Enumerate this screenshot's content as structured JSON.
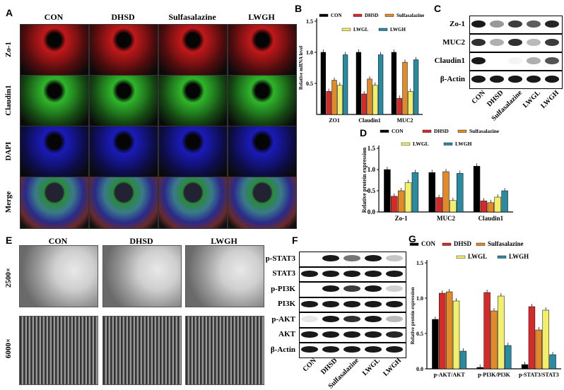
{
  "panels": {
    "A": "A",
    "B": "B",
    "C": "C",
    "D": "D",
    "E": "E",
    "F": "F",
    "G": "G"
  },
  "panelA": {
    "columns": [
      "CON",
      "DHSD",
      "Sulfasalazine",
      "LWGH"
    ],
    "rows": [
      "Zo-1",
      "Claudin1",
      "DAPI",
      "Merge"
    ],
    "colors": {
      "Zo-1": "#c0181a",
      "Claudin1": "#2fb52a",
      "DAPI": "#1a1ab8",
      "Merge": "#3a5a3a"
    }
  },
  "panelC": {
    "rows": [
      "Zo-1",
      "MUC2",
      "Claudin1",
      "β-Actin"
    ],
    "lanes": [
      "CON",
      "DHSD",
      "Sulfasalazine",
      "LWGL",
      "LWGH"
    ],
    "intensity": [
      [
        1.0,
        0.45,
        0.85,
        0.7,
        0.95
      ],
      [
        0.9,
        0.35,
        0.9,
        0.3,
        0.85
      ],
      [
        1.0,
        0.0,
        0.05,
        0.35,
        0.75
      ],
      [
        1.0,
        1.0,
        1.0,
        1.0,
        1.0
      ]
    ]
  },
  "panelE": {
    "columns": [
      "CON",
      "DHSD",
      "LWGH"
    ],
    "rows": [
      "2500×",
      "6000×"
    ]
  },
  "panelF": {
    "rows": [
      "p-STAT3",
      "STAT3",
      "p-PI3K",
      "PI3K",
      "p-AKT",
      "AKT",
      "β-Actin"
    ],
    "lanes": [
      "CON",
      "DHSD",
      "Sulfasalazine",
      "LWGL",
      "LWGH"
    ],
    "intensity": [
      [
        0.0,
        1.0,
        0.6,
        1.0,
        0.25
      ],
      [
        1.0,
        1.0,
        1.0,
        1.0,
        1.0
      ],
      [
        0.0,
        1.0,
        0.85,
        1.0,
        0.2
      ],
      [
        1.0,
        1.0,
        1.0,
        1.0,
        1.0
      ],
      [
        0.1,
        1.0,
        0.9,
        1.0,
        0.3
      ],
      [
        1.0,
        1.0,
        1.0,
        1.0,
        0.95
      ],
      [
        1.0,
        1.0,
        1.0,
        1.0,
        1.0
      ]
    ]
  },
  "chart_data": [
    {
      "id": "B",
      "type": "bar",
      "categories": [
        "ZO1",
        "Claudin1",
        "MUC2"
      ],
      "ylabel": "Relative mRNA level",
      "ylim": [
        0,
        1.5
      ],
      "yticks": [
        "0.5",
        "1.0",
        "1.5"
      ],
      "legend": [
        "CON",
        "DHSD",
        "Sulfasalazine",
        "LWGL",
        "LWGH"
      ],
      "colors": [
        "#000000",
        "#d42a2a",
        "#e08a2a",
        "#f2ef6a",
        "#2a8aa0"
      ],
      "series": [
        {
          "name": "CON",
          "values": [
            1.0,
            1.0,
            1.0
          ]
        },
        {
          "name": "DHSD",
          "values": [
            0.37,
            0.33,
            0.26
          ]
        },
        {
          "name": "Sulfasalazine",
          "values": [
            0.55,
            0.57,
            0.84
          ]
        },
        {
          "name": "LWGL",
          "values": [
            0.47,
            0.47,
            0.37
          ]
        },
        {
          "name": "LWGH",
          "values": [
            0.96,
            0.96,
            0.88
          ]
        }
      ]
    },
    {
      "id": "D",
      "type": "bar",
      "categories": [
        "Zo-1",
        "MUC2",
        "Claudin1"
      ],
      "ylabel": "Relative protein expression",
      "ylim": [
        0,
        1.5
      ],
      "yticks": [
        "0.0",
        "0.5",
        "1.0",
        "1.5"
      ],
      "legend": [
        "CON",
        "DHSD",
        "Sulfasalazine",
        "LWGL",
        "LWGH"
      ],
      "colors": [
        "#000000",
        "#d42a2a",
        "#e08a2a",
        "#f2ef6a",
        "#2a8aa0"
      ],
      "series": [
        {
          "name": "CON",
          "values": [
            1.0,
            0.93,
            1.08
          ]
        },
        {
          "name": "DHSD",
          "values": [
            0.37,
            0.34,
            0.26
          ]
        },
        {
          "name": "Sulfasalazine",
          "values": [
            0.5,
            0.95,
            0.22
          ]
        },
        {
          "name": "LWGL",
          "values": [
            0.69,
            0.27,
            0.35
          ]
        },
        {
          "name": "LWGH",
          "values": [
            0.93,
            0.91,
            0.5
          ]
        }
      ]
    },
    {
      "id": "G",
      "type": "bar",
      "categories": [
        "p-AKT/AKT",
        "p-PI3K/PI3K",
        "p-STAT3/STAT3"
      ],
      "ylabel": "Relative protein expression",
      "ylim": [
        0,
        1.5
      ],
      "yticks": [
        "0.0",
        "0.5",
        "1.0",
        "1.5"
      ],
      "legend": [
        "CON",
        "DHSD",
        "Sulfasalazine",
        "LWGL",
        "LWGH"
      ],
      "colors": [
        "#000000",
        "#d42a2a",
        "#e08a2a",
        "#f2ef6a",
        "#2a8aa0"
      ],
      "series": [
        {
          "name": "CON",
          "values": [
            0.7,
            0.02,
            0.06
          ]
        },
        {
          "name": "DHSD",
          "values": [
            1.07,
            1.08,
            0.88
          ]
        },
        {
          "name": "Sulfasalazine",
          "values": [
            1.09,
            0.82,
            0.55
          ]
        },
        {
          "name": "LWGL",
          "values": [
            0.96,
            1.03,
            0.83
          ]
        },
        {
          "name": "LWGH",
          "values": [
            0.25,
            0.33,
            0.2
          ]
        }
      ]
    }
  ]
}
